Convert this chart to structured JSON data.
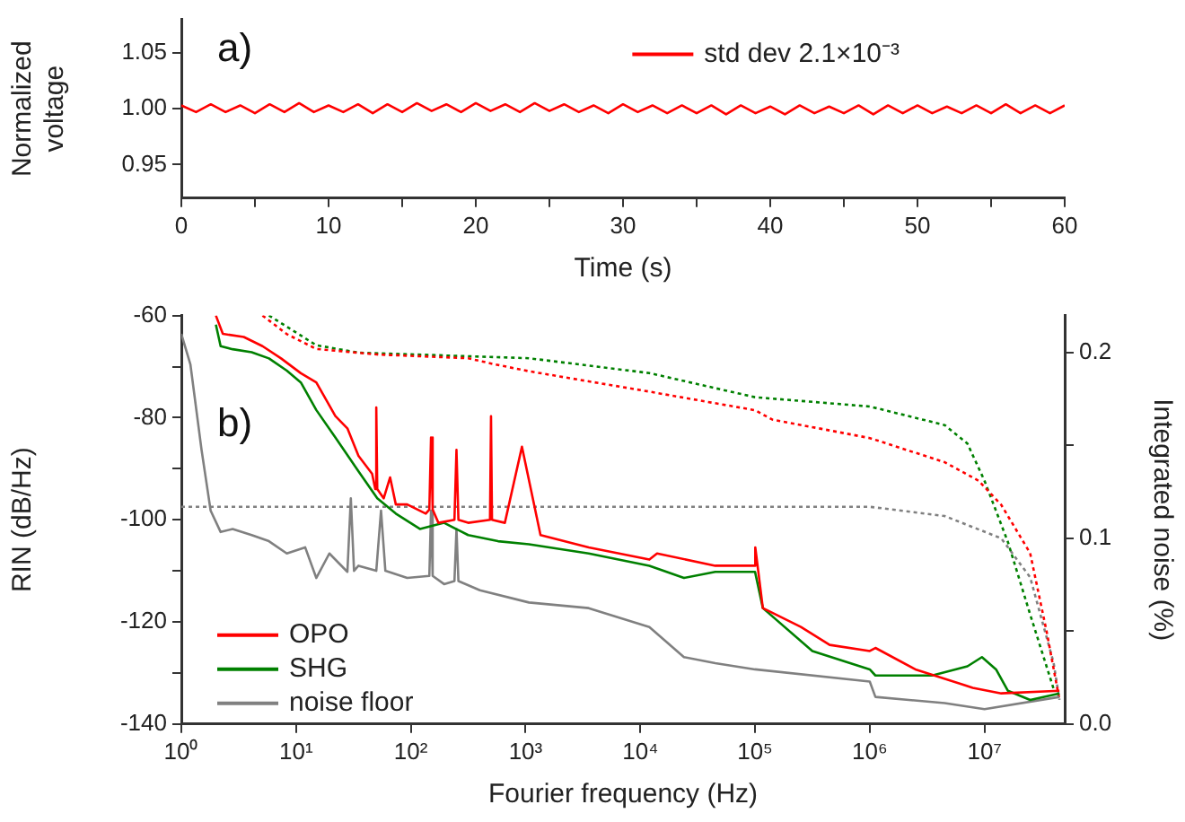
{
  "chart_data": [
    {
      "type": "line",
      "xlabel": "Time (s)",
      "ylabel": "Normalized voltage",
      "annotations": [
        "a)"
      ],
      "x": [
        0,
        1,
        2,
        3,
        4,
        5,
        6,
        7,
        8,
        9,
        10,
        11,
        12,
        13,
        14,
        15,
        16,
        17,
        18,
        19,
        20,
        21,
        22,
        23,
        24,
        25,
        26,
        27,
        28,
        29,
        30,
        31,
        32,
        33,
        34,
        35,
        36,
        37,
        38,
        39,
        40,
        41,
        42,
        43,
        44,
        45,
        46,
        47,
        48,
        49,
        50,
        51,
        52,
        53,
        54,
        55,
        56,
        57,
        58,
        59,
        60
      ],
      "series": [
        {
          "name": "std dev 2.1×10⁻³",
          "color": "#ff0000",
          "values": [
            1.003,
            0.997,
            1.004,
            0.997,
            1.003,
            0.996,
            1.004,
            0.997,
            1.005,
            0.997,
            1.003,
            0.997,
            1.004,
            0.996,
            1.004,
            0.997,
            1.005,
            0.998,
            1.004,
            0.997,
            1.005,
            0.998,
            1.004,
            0.997,
            1.005,
            0.998,
            1.004,
            0.997,
            1.003,
            0.996,
            1.004,
            0.997,
            1.003,
            0.996,
            1.003,
            0.996,
            1.003,
            0.995,
            1.003,
            0.996,
            1.002,
            0.995,
            1.003,
            0.996,
            1.002,
            0.996,
            1.003,
            0.995,
            1.003,
            0.996,
            1.003,
            0.996,
            1.002,
            0.996,
            1.003,
            0.996,
            1.004,
            0.996,
            1.003,
            0.996,
            1.003
          ]
        }
      ],
      "xlim": [
        0,
        60
      ],
      "xticks": [
        0,
        {
          "value": 5,
          "label": null
        },
        10,
        {
          "value": 15,
          "label": null
        },
        20,
        {
          "value": 25,
          "label": null
        },
        30,
        {
          "value": 35,
          "label": null
        },
        40,
        {
          "value": 45,
          "label": null
        },
        50,
        {
          "value": 55,
          "label": null
        },
        60
      ],
      "ylim": [
        0.92,
        1.08
      ],
      "yticks": [
        {
          "value": 0.95,
          "label": "0.95"
        },
        {
          "value": 1,
          "label": "1.00"
        },
        {
          "value": 1.05,
          "label": "1.05"
        }
      ],
      "grid": false,
      "legend": "top right",
      "marker": "none",
      "line_style": "solid"
    },
    {
      "type": "line",
      "xlabel": "Fourier frequency (Hz)",
      "ylabel": "RIN (dB/Hz)",
      "y2label": "Integrated noise (%)",
      "annotations": [
        "b)"
      ],
      "log": "x",
      "series": [
        {
          "name": "OPO",
          "color": "#ff0000",
          "x": [
            2,
            2.3,
            3.5,
            5.1,
            7.4,
            11,
            15,
            22,
            28,
            35,
            46,
            49,
            50,
            51,
            58,
            66,
            74,
            93,
            135,
            145,
            150,
            155,
            174,
            240,
            250,
            260,
            316,
            490,
            500,
            510,
            660,
            930,
            1350,
            3550,
            12000,
            14000,
            45000,
            100000,
            100500,
            117000,
            251000,
            447000,
            1000000,
            1120000,
            2500000,
            7900000,
            14000000,
            45000000
          ],
          "values": [
            -60,
            -63.6,
            -64.2,
            -66,
            -68.4,
            -71.3,
            -73.1,
            -79.7,
            -82.1,
            -87.5,
            -91,
            -94,
            -78,
            -94,
            -95.8,
            -91.7,
            -97,
            -97,
            -98.8,
            -98,
            -83.9,
            -98,
            -100.6,
            -100,
            -86.3,
            -100,
            -100.6,
            -100,
            -79.7,
            -100,
            -100.6,
            -85.7,
            -103,
            -105.4,
            -107.8,
            -106.6,
            -109,
            -109,
            -105.4,
            -117.3,
            -121,
            -124.5,
            -125.7,
            -125.1,
            -129.3,
            -132.9,
            -134,
            -133.5
          ]
        },
        {
          "name": "SHG",
          "color": "#008000",
          "x": [
            2,
            2.2,
            2.8,
            4.1,
            5.8,
            8.3,
            11,
            15,
            22,
            35,
            51,
            74,
            120,
            195,
            316,
            575,
            1070,
            3550,
            12000,
            24000,
            45000,
            100000,
            117000,
            316000,
            1000000,
            1120000,
            3500000,
            7100000,
            9500000,
            12600000,
            16000000,
            25000000,
            45000000
          ],
          "values": [
            -61.8,
            -66,
            -66.6,
            -67.2,
            -68.4,
            -70.8,
            -73.1,
            -78.5,
            -83.9,
            -90.5,
            -95.8,
            -98.8,
            -101.8,
            -100.6,
            -103,
            -104.2,
            -104.8,
            -106.6,
            -109,
            -111.4,
            -110.2,
            -110.2,
            -117.3,
            -125.7,
            -129.3,
            -130.5,
            -130.5,
            -128.7,
            -126.9,
            -129.3,
            -133.5,
            -135.3,
            -134
          ]
        },
        {
          "name": "noise floor",
          "color": "#808080",
          "x": [
            1,
            1.2,
            1.5,
            1.8,
            2.2,
            2.8,
            4.1,
            5.8,
            8.3,
            12,
            15,
            19.5,
            28,
            30,
            32,
            35,
            50,
            55,
            60,
            93,
            145,
            150,
            155,
            195,
            240,
            250,
            260,
            400,
            1070,
            3550,
            12000,
            24000,
            45000,
            100000,
            1000000,
            1120000,
            4500000,
            10000000,
            45000000
          ],
          "values": [
            -63.6,
            -69.6,
            -86.3,
            -98.2,
            -102.4,
            -101.8,
            -103,
            -104.2,
            -106.6,
            -105.4,
            -111.4,
            -106.6,
            -110.2,
            -95.8,
            -110,
            -109,
            -110,
            -98.2,
            -110,
            -111.4,
            -111,
            -98.2,
            -111,
            -112.6,
            -112,
            -101.8,
            -112,
            -113.8,
            -116.2,
            -117.3,
            -121,
            -126.9,
            -128.1,
            -129.3,
            -131.7,
            -134.7,
            -135.9,
            -137.1,
            -134.7
          ]
        },
        {
          "color": "#ff0000",
          "axis": "y2",
          "line_style": "dotted",
          "x": [
            5.1,
            8.3,
            15,
            51,
            316,
            513,
            1070,
            12000,
            100000,
            141000,
            1000000,
            4500000,
            8900000,
            14000000,
            25000000,
            35000000,
            45000000
          ],
          "values": [
            0.22,
            0.21,
            0.202,
            0.199,
            0.197,
            0.194,
            0.19,
            0.179,
            0.169,
            0.164,
            0.154,
            0.141,
            0.131,
            0.118,
            0.092,
            0.049,
            0.013
          ]
        },
        {
          "color": "#008000",
          "axis": "y2",
          "line_style": "dotted",
          "x": [
            5.8,
            8.3,
            15,
            35,
            1070,
            12000,
            100000,
            1000000,
            4500000,
            7100000,
            10000000,
            16000000,
            25000000,
            40000000
          ],
          "values": [
            0.22,
            0.214,
            0.204,
            0.2,
            0.197,
            0.189,
            0.176,
            0.171,
            0.161,
            0.151,
            0.131,
            0.098,
            0.059,
            0.019
          ]
        },
        {
          "color": "#808080",
          "axis": "y2",
          "line_style": "dotted",
          "x": [
            1,
            1000,
            1000000,
            4500000,
            14000000,
            25000000,
            40000000,
            45000000
          ],
          "values": [
            0.117,
            0.117,
            0.117,
            0.112,
            0.1,
            0.079,
            0.033,
            0.013
          ]
        }
      ],
      "xlim": [
        1,
        50000000
      ],
      "xticks": [
        {
          "value": 1,
          "label": "10⁰"
        },
        {
          "value": 10,
          "label": "10¹"
        },
        {
          "value": 100,
          "label": "10²"
        },
        {
          "value": 1000,
          "label": "10³"
        },
        {
          "value": 10000,
          "label": "10⁴"
        },
        {
          "value": 100000,
          "label": "10⁵"
        },
        {
          "value": 1000000,
          "label": "10⁶"
        },
        {
          "value": 10000000,
          "label": "10⁷"
        }
      ],
      "ylim": [
        -140,
        -60
      ],
      "yticks": [
        -140,
        {
          "value": -130,
          "label": null
        },
        -120,
        {
          "value": -110,
          "label": null
        },
        -100,
        {
          "value": -90,
          "label": null
        },
        -80,
        {
          "value": -70,
          "label": null
        },
        -60
      ],
      "y2lim": [
        0,
        0.22
      ],
      "y2ticks": [
        {
          "value": 0,
          "label": "0.0"
        },
        {
          "value": 0.05,
          "label": null
        },
        {
          "value": 0.1,
          "label": "0.1"
        },
        {
          "value": 0.15,
          "label": null
        },
        {
          "value": 0.2,
          "label": "0.2"
        }
      ],
      "grid": false,
      "legend": "bottom left",
      "marker": "none",
      "line_style": "solid"
    }
  ]
}
